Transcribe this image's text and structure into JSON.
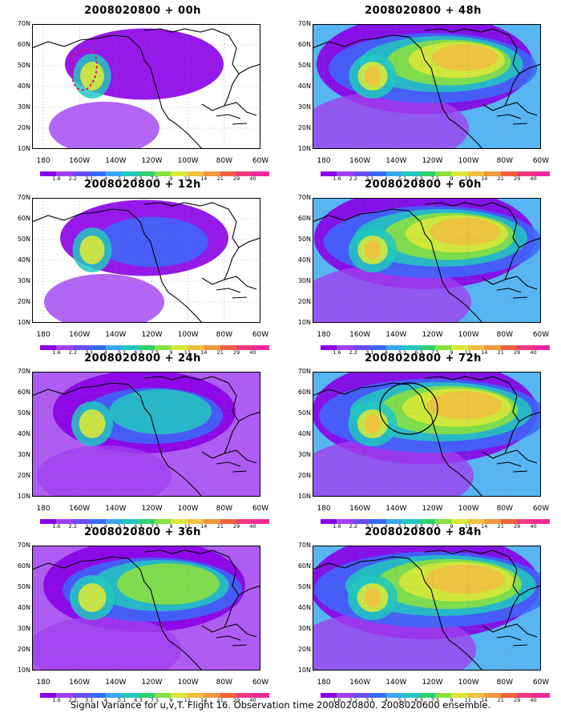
{
  "panels": [
    {
      "title": "2008020800 + 00h",
      "intensity": 0.15
    },
    {
      "title": "2008020800 + 48h",
      "intensity": 0.75
    },
    {
      "title": "2008020800 + 12h",
      "intensity": 0.25
    },
    {
      "title": "2008020800 + 60h",
      "intensity": 0.8
    },
    {
      "title": "2008020800 + 24h",
      "intensity": 0.4
    },
    {
      "title": "2008020800 + 72h",
      "intensity": 0.85
    },
    {
      "title": "2008020800 + 36h",
      "intensity": 0.6
    },
    {
      "title": "2008020800 + 84h",
      "intensity": 0.9
    }
  ],
  "axes": {
    "y_ticks": [
      "70N",
      "60N",
      "50N",
      "40N",
      "30N",
      "20N",
      "10N"
    ],
    "x_ticks": [
      "180",
      "160W",
      "140W",
      "120W",
      "100W",
      "80W",
      "60W"
    ]
  },
  "colorbar": {
    "labels": [
      "1.6",
      "2.2",
      "3.1",
      "4",
      "5.1",
      "6.3",
      "7.5",
      "9",
      "11",
      "14",
      "21",
      "29",
      "40"
    ],
    "colors": [
      "#8a00e6",
      "#a040f0",
      "#6a4cf5",
      "#3a6af8",
      "#3aa8f0",
      "#22c8c0",
      "#30d070",
      "#88e040",
      "#d8e838",
      "#f0c040",
      "#f09840",
      "#f06040",
      "#f03880",
      "#f0289a"
    ]
  },
  "caption": "Signal Variance for u,v,T. Flight 16. Observation time 2008020800. 2008020600 ensemble."
}
